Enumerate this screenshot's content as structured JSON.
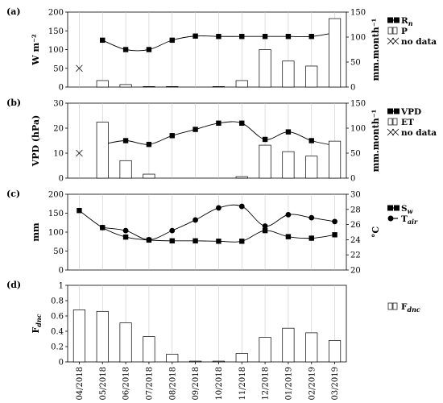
{
  "chart_data": [
    {
      "type": "bar",
      "panel_label": "(a)",
      "ylabel_left": "W m⁻²",
      "ylabel_right": "mm.month⁻¹",
      "ylim_left": [
        0,
        200
      ],
      "ylim_right": [
        0,
        150
      ],
      "yticks_left": [
        "0",
        "50",
        "100",
        "150",
        "200"
      ],
      "yticks_right": [
        "0",
        "50",
        "100",
        "150"
      ],
      "categories": [
        "04/2018",
        "05/2018",
        "06/2018",
        "07/2018",
        "08/2018",
        "09/2018",
        "10/2018",
        "11/2018",
        "12/2018",
        "01/2019",
        "02/2019",
        "03/2019"
      ],
      "series": [
        {
          "name": "R",
          "name_sub": "n",
          "kind": "line",
          "axis": "left",
          "values": [
            null,
            125,
            100,
            100,
            125,
            136,
            135,
            135,
            135,
            135,
            135,
            145
          ]
        },
        {
          "name": "P",
          "kind": "bar",
          "axis": "right",
          "values": [
            null,
            13,
            5,
            1,
            1,
            0,
            1,
            13,
            75,
            52,
            42,
            137
          ]
        },
        {
          "name": "no data",
          "kind": "marker",
          "axis": "left",
          "values": [
            50,
            null,
            null,
            null,
            null,
            null,
            null,
            null,
            null,
            null,
            null,
            null
          ]
        }
      ]
    },
    {
      "type": "bar",
      "panel_label": "(b)",
      "ylabel_left": "VPD (hPa)",
      "ylabel_right": "mm.month⁻¹",
      "ylim_left": [
        0,
        30
      ],
      "ylim_right": [
        0,
        150
      ],
      "yticks_left": [
        "0",
        "10",
        "20",
        "30"
      ],
      "yticks_right": [
        "0",
        "50",
        "100",
        "150"
      ],
      "series": [
        {
          "name": "VPD",
          "kind": "line",
          "axis": "left",
          "values": [
            null,
            13.5,
            15,
            13.5,
            17,
            19.5,
            22,
            22,
            15.5,
            18.5,
            15,
            13
          ]
        },
        {
          "name": "ET",
          "kind": "bar",
          "axis": "right",
          "values": [
            null,
            112,
            35,
            8,
            0,
            0,
            0,
            3,
            66,
            53,
            44,
            74
          ]
        },
        {
          "name": "no data",
          "kind": "marker",
          "axis": "left",
          "values": [
            10,
            null,
            null,
            null,
            null,
            null,
            null,
            null,
            null,
            null,
            null,
            null
          ]
        }
      ]
    },
    {
      "type": "line",
      "panel_label": "(c)",
      "ylabel_left": "mm",
      "ylabel_right": "°C",
      "ylim_left": [
        0,
        200
      ],
      "ylim_right": [
        20,
        30
      ],
      "yticks_left": [
        "0",
        "50",
        "100",
        "150",
        "200"
      ],
      "yticks_right": [
        "20",
        "22",
        "24",
        "26",
        "28",
        "30"
      ],
      "series": [
        {
          "name": "S",
          "name_sub": "w",
          "kind": "line",
          "marker": "square",
          "axis": "left",
          "values": [
            157,
            112,
            87,
            79,
            77,
            77,
            76,
            76,
            104,
            88,
            84,
            93
          ]
        },
        {
          "name": "T",
          "name_sub": "air",
          "kind": "line",
          "marker": "circle",
          "axis": "right",
          "values": [
            null,
            25.6,
            25.2,
            24,
            25.2,
            26.6,
            28.2,
            28.4,
            25.8,
            27.3,
            26.9,
            26.4
          ]
        }
      ]
    },
    {
      "type": "bar",
      "panel_label": "(d)",
      "ylabel_left": "F",
      "ylabel_left_sub": "dnc",
      "ylim_left": [
        0,
        1
      ],
      "yticks_left": [
        "0",
        "0.2",
        "0.4",
        "0.6",
        "0.8",
        "1"
      ],
      "series": [
        {
          "name": "F",
          "name_sub": "dnc",
          "kind": "bar",
          "axis": "left",
          "values": [
            0.68,
            0.66,
            0.51,
            0.33,
            0.1,
            0.01,
            0.01,
            0.11,
            0.32,
            0.44,
            0.38,
            0.28
          ]
        }
      ]
    }
  ]
}
